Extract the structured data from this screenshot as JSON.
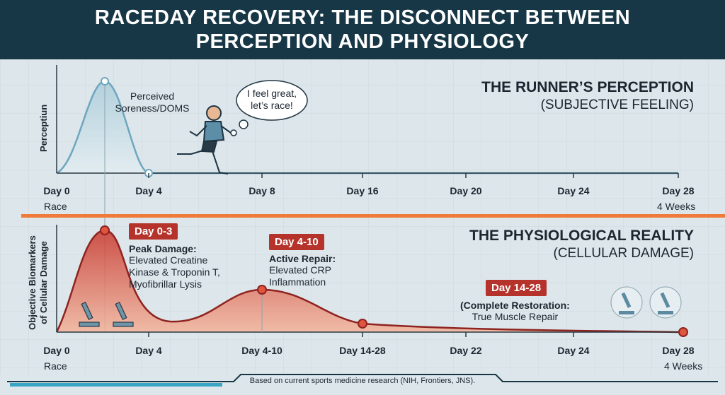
{
  "title": "RACEDAY RECOVERY: THE DISCONNECT BETWEEN PERCEPTION AND PHYSIOLOGY",
  "perception": {
    "heading": "THE RUNNER’S PERCEPTION",
    "subheading": "(SUBJECTIVE FEELING)",
    "y_label": "Perceptiun",
    "peak_label": [
      "Perceived",
      "Soreness/DOMS"
    ],
    "speech": [
      "I feel great,",
      "let’s race!"
    ],
    "x_labels": [
      "Day 0",
      "Day 4",
      "Day 8",
      "Day 16",
      "Day 20",
      "Day 24",
      "Day 28"
    ],
    "x_sublabels": [
      "Race",
      "4 Weeks"
    ]
  },
  "physiology": {
    "heading": "THE PHYSIOLOGICAL REALITY",
    "subheading": "(CELLULAR DAMAGE)",
    "y_label": [
      "Objective Biomarkers",
      "of Cellular Damage"
    ],
    "phases": [
      {
        "tag": "Day 0-3",
        "title": "Peak Damage:",
        "lines": [
          "Elevated Creatine",
          "Kinase & Troponin T,",
          "Myofibrillar Lysis"
        ]
      },
      {
        "tag": "Day 4-10",
        "title": "Active Repair:",
        "lines": [
          "Elevated CRP",
          "Inflammation"
        ]
      },
      {
        "tag": "Day 14-28",
        "title": "(Complete Restoration:",
        "lines": [
          "True Muscle Repair"
        ]
      }
    ],
    "x_labels": [
      "Day 0",
      "Day 4",
      "Day 4-10",
      "Day 14-28",
      "Day 22",
      "Day 24",
      "Day 28"
    ],
    "x_sublabels": [
      "Race",
      "4 Weeks"
    ]
  },
  "footnote": "Based on current sports medicine research (NIH, Frontiers, JNS)."
}
